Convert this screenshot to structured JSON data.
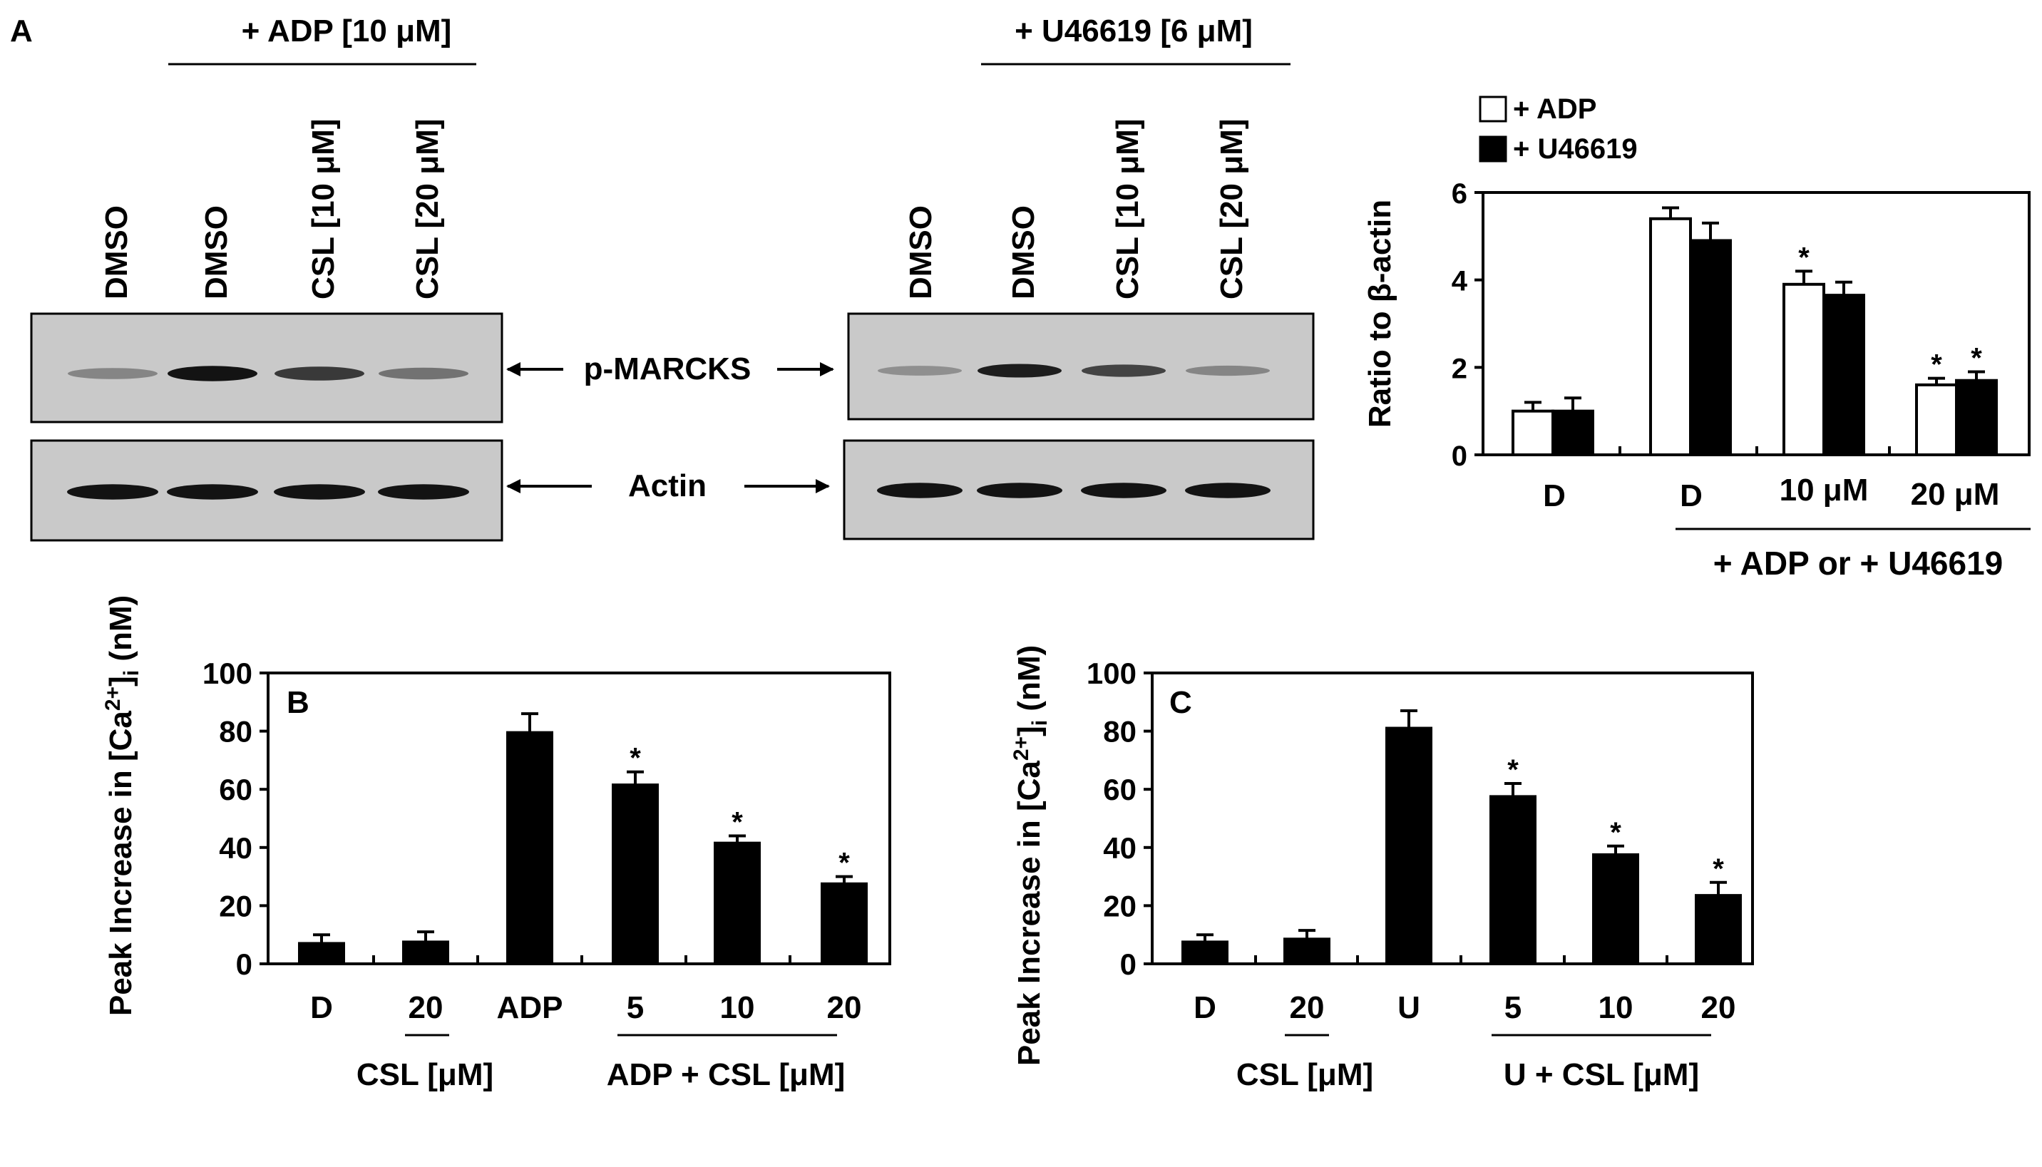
{
  "panel_a": {
    "label": "A",
    "blot_left": {
      "treatment": "+ ADP [10 μM]",
      "lanes": [
        "DMSO",
        "DMSO",
        "CSL [10 μM]",
        "CSL [20 μM]"
      ],
      "pmarcks_band_intensity": [
        0.35,
        0.95,
        0.75,
        0.45
      ],
      "actin_band_intensity": [
        0.95,
        0.95,
        0.95,
        0.95
      ]
    },
    "blot_right": {
      "treatment": "+ U46619 [6 μM]",
      "lanes": [
        "DMSO",
        "DMSO",
        "CSL [10 μM]",
        "CSL [20 μM]"
      ],
      "pmarcks_band_intensity": [
        0.3,
        0.9,
        0.7,
        0.35
      ],
      "actin_band_intensity": [
        0.95,
        0.95,
        0.95,
        0.95
      ]
    },
    "row_labels": {
      "pmarcks": "p-MARCKS",
      "actin": "Actin"
    }
  },
  "chart_data": [
    {
      "id": "A-quant",
      "type": "bar",
      "ylabel": "Ratio to β-actin",
      "ylim": [
        0,
        6
      ],
      "yticks": [
        0,
        2,
        4,
        6
      ],
      "categories": [
        "D",
        "D",
        "10 μM",
        "20 μM"
      ],
      "group_label": "+ ADP or + U46619",
      "series": [
        {
          "name": "+ ADP",
          "color": "#ffffff",
          "values": [
            1.0,
            5.4,
            3.9,
            1.6
          ],
          "errors": [
            0.2,
            0.25,
            0.3,
            0.15
          ],
          "significant": [
            false,
            false,
            true,
            true
          ]
        },
        {
          "name": "+ U46619",
          "color": "#000000",
          "values": [
            1.0,
            4.9,
            3.65,
            1.7
          ],
          "errors": [
            0.3,
            0.4,
            0.3,
            0.2
          ],
          "significant": [
            false,
            false,
            false,
            true
          ]
        }
      ],
      "legend": "top-left",
      "significance_marker": "*"
    },
    {
      "id": "B",
      "label": "B",
      "type": "bar",
      "ylabel": "Peak Increase in [Ca2+]i (nM)",
      "ylabel_parts": {
        "pre": "Peak Increase in [Ca",
        "sup": "2+",
        "mid": "]",
        "sub": "i",
        "post": " (nM)"
      },
      "ylim": [
        0,
        100
      ],
      "yticks": [
        0,
        20,
        40,
        60,
        80,
        100
      ],
      "categories": [
        "D",
        "20",
        "ADP",
        "5",
        "10",
        "20"
      ],
      "group_labels": [
        "CSL [μM]",
        "ADP + CSL [μM]"
      ],
      "series": [
        {
          "color": "#000000",
          "values": [
            7,
            7.5,
            79.5,
            61.5,
            41.5,
            27.5
          ],
          "errors": [
            3,
            3.5,
            6.5,
            4.5,
            2.5,
            2.5
          ],
          "significant": [
            false,
            false,
            false,
            true,
            true,
            true
          ]
        }
      ],
      "significance_marker": "*"
    },
    {
      "id": "C",
      "label": "C",
      "type": "bar",
      "ylabel": "Peak Increase in [Ca2+]i (nM)",
      "ylabel_parts": {
        "pre": "Peak Increase in [Ca",
        "sup": "2+",
        "mid": "]",
        "sub": "i",
        "post": " (nM)"
      },
      "ylim": [
        0,
        100
      ],
      "yticks": [
        0,
        20,
        40,
        60,
        80,
        100
      ],
      "categories": [
        "D",
        "20",
        "U",
        "5",
        "10",
        "20"
      ],
      "group_labels": [
        "CSL [μM]",
        "U + CSL [μM]"
      ],
      "series": [
        {
          "color": "#000000",
          "values": [
            7.5,
            8.5,
            81,
            57.5,
            37.5,
            23.5
          ],
          "errors": [
            2.5,
            3,
            6,
            4.5,
            3,
            4.5
          ],
          "significant": [
            false,
            false,
            false,
            true,
            true,
            true
          ]
        }
      ],
      "significance_marker": "*"
    }
  ]
}
